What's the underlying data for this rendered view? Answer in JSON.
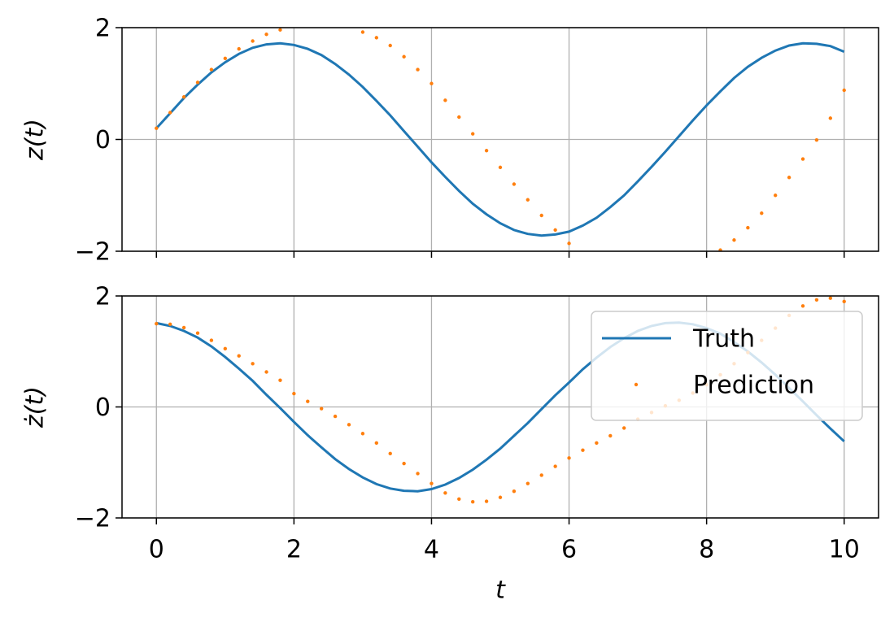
{
  "chart_data": [
    {
      "type": "line",
      "ylabel": "z(t)",
      "x": [
        0,
        0.2,
        0.4,
        0.6,
        0.8,
        1.0,
        1.2,
        1.4,
        1.6,
        1.8,
        2.0,
        2.2,
        2.4,
        2.6,
        2.8,
        3.0,
        3.2,
        3.4,
        3.6,
        3.8,
        4.0,
        4.2,
        4.4,
        4.6,
        4.8,
        5.0,
        5.2,
        5.4,
        5.6,
        5.8,
        6.0,
        6.2,
        6.4,
        6.6,
        6.8,
        7.0,
        7.2,
        7.4,
        7.6,
        7.8,
        8.0,
        8.2,
        8.4,
        8.6,
        8.8,
        9.0,
        9.2,
        9.4,
        9.6,
        9.8,
        10
      ],
      "series": [
        {
          "color": "#1f77b4",
          "style": "line",
          "values": [
            0.2,
            0.47,
            0.74,
            0.98,
            1.2,
            1.38,
            1.53,
            1.64,
            1.7,
            1.72,
            1.69,
            1.62,
            1.51,
            1.35,
            1.16,
            0.94,
            0.69,
            0.43,
            0.15,
            -0.13,
            -0.41,
            -0.67,
            -0.92,
            -1.15,
            -1.34,
            -1.5,
            -1.62,
            -1.69,
            -1.72,
            -1.7,
            -1.65,
            -1.54,
            -1.4,
            -1.21,
            -1.0,
            -0.75,
            -0.49,
            -0.22,
            0.06,
            0.34,
            0.61,
            0.86,
            1.1,
            1.3,
            1.46,
            1.59,
            1.68,
            1.72,
            1.71,
            1.67,
            1.57
          ]
        },
        {
          "color": "#ff7f0e",
          "style": "dots",
          "values": [
            0.2,
            0.48,
            0.76,
            1.02,
            1.25,
            1.45,
            1.62,
            1.76,
            1.88,
            1.96,
            null,
            null,
            null,
            null,
            null,
            1.92,
            1.82,
            1.68,
            1.48,
            1.25,
            1.0,
            0.7,
            0.4,
            0.1,
            -0.2,
            -0.5,
            -0.8,
            -1.08,
            -1.36,
            -1.62,
            -1.86,
            null,
            null,
            null,
            null,
            null,
            null,
            null,
            null,
            null,
            null,
            -1.98,
            -1.8,
            -1.58,
            -1.32,
            -1.0,
            -0.68,
            -0.35,
            -0.01,
            0.38,
            0.88
          ]
        }
      ],
      "xlim": [
        -0.5,
        10.5
      ],
      "ylim": [
        -2,
        2
      ],
      "yticks": [
        {
          "value": -2,
          "label": "−2"
        },
        0,
        2
      ],
      "grid": true
    },
    {
      "type": "line",
      "ylabel": "ż(t)",
      "xlabel": "t",
      "legend": "upper right",
      "x": [
        0,
        0.2,
        0.4,
        0.6,
        0.8,
        1.0,
        1.2,
        1.4,
        1.6,
        1.8,
        2.0,
        2.2,
        2.4,
        2.6,
        2.8,
        3.0,
        3.2,
        3.4,
        3.6,
        3.8,
        4.0,
        4.2,
        4.4,
        4.6,
        4.8,
        5.0,
        5.2,
        5.4,
        5.6,
        5.8,
        6.0,
        6.2,
        6.4,
        6.6,
        6.8,
        7.0,
        7.2,
        7.4,
        7.6,
        7.8,
        8.0,
        8.2,
        8.4,
        8.6,
        8.8,
        9.0,
        9.2,
        9.4,
        9.6,
        9.8,
        10
      ],
      "series": [
        {
          "name": "Truth",
          "color": "#1f77b4",
          "style": "line",
          "values": [
            1.51,
            1.46,
            1.37,
            1.25,
            1.09,
            0.9,
            0.69,
            0.47,
            0.22,
            -0.02,
            -0.27,
            -0.51,
            -0.73,
            -0.94,
            -1.12,
            -1.27,
            -1.39,
            -1.47,
            -1.51,
            -1.52,
            -1.48,
            -1.4,
            -1.28,
            -1.13,
            -0.95,
            -0.75,
            -0.52,
            -0.29,
            -0.04,
            0.21,
            0.44,
            0.68,
            0.89,
            1.08,
            1.24,
            1.37,
            1.46,
            1.51,
            1.52,
            1.49,
            1.42,
            1.32,
            1.17,
            1.0,
            0.8,
            0.58,
            0.34,
            0.1,
            -0.15,
            -0.39,
            -0.62
          ]
        },
        {
          "name": "Prediction",
          "color": "#ff7f0e",
          "style": "dots",
          "values": [
            1.5,
            1.49,
            1.43,
            1.33,
            1.2,
            1.05,
            0.92,
            0.78,
            0.63,
            0.48,
            0.24,
            0.1,
            -0.03,
            -0.17,
            -0.32,
            -0.48,
            -0.65,
            -0.84,
            -1.02,
            -1.2,
            -1.38,
            -1.55,
            -1.66,
            -1.71,
            -1.7,
            -1.63,
            -1.52,
            -1.38,
            -1.23,
            -1.07,
            -0.92,
            -0.78,
            -0.65,
            -0.52,
            -0.38,
            -0.22,
            -0.1,
            0.02,
            0.12,
            0.25,
            0.4,
            0.58,
            0.78,
            0.98,
            1.2,
            1.42,
            1.65,
            1.82,
            1.93,
            1.96,
            1.9
          ]
        }
      ],
      "xlim": [
        -0.5,
        10.5
      ],
      "ylim": [
        -2,
        2
      ],
      "xticks": [
        0,
        2,
        4,
        6,
        8,
        10
      ],
      "yticks": [
        {
          "value": -2,
          "label": "−2"
        },
        0,
        2
      ],
      "grid": true
    }
  ]
}
